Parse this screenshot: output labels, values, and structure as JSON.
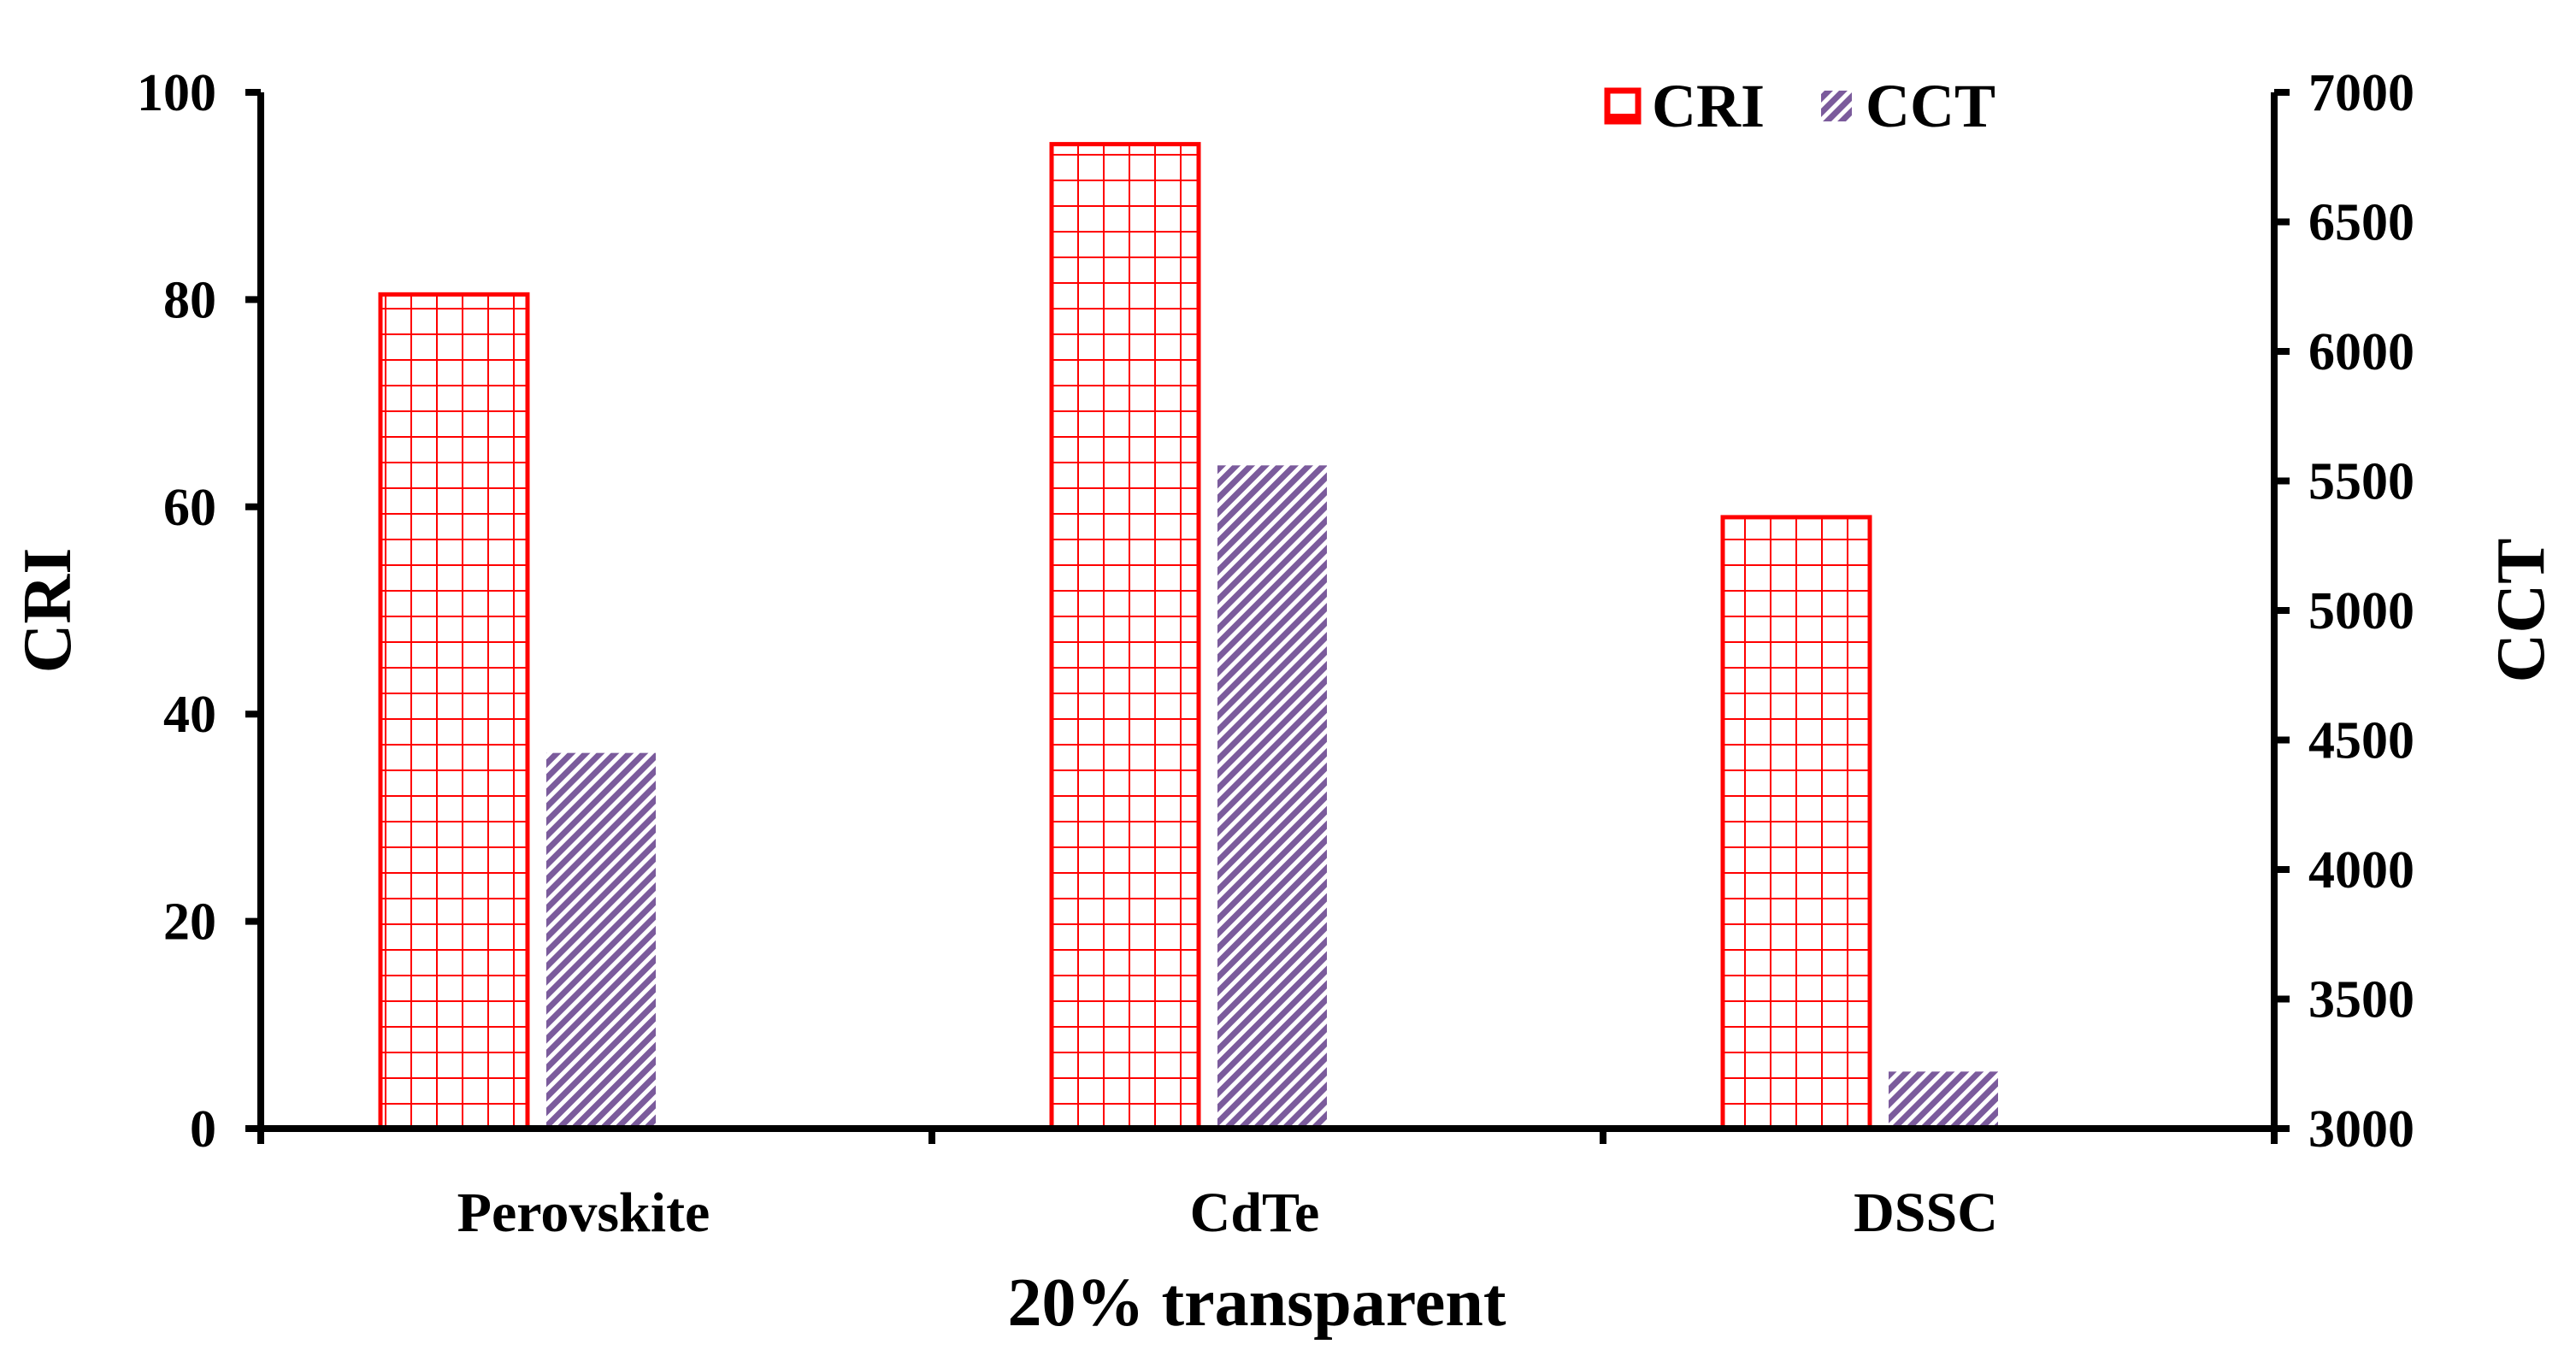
{
  "chart_data": {
    "type": "bar",
    "xlabel": "20% transparent",
    "categories": [
      "Perovskite",
      "CdTe",
      "DSSC"
    ],
    "series": [
      {
        "name": "CRI",
        "axis": "left",
        "values": [
          80.5,
          95,
          59
        ],
        "color": "#ff0000",
        "pattern": "grid"
      },
      {
        "name": "CCT",
        "axis": "right",
        "values": [
          4450,
          5560,
          3220
        ],
        "color": "#7b5b9c",
        "pattern": "diagonal-hatch"
      }
    ],
    "ylabel": "CRI",
    "ylim": [
      0,
      100
    ],
    "yticks": [
      "0",
      "20",
      "40",
      "60",
      "80",
      "100"
    ],
    "y2label": "CCT",
    "y2lim": [
      3000,
      7000
    ],
    "y2ticks": [
      "3000",
      "3500",
      "4000",
      "4500",
      "5000",
      "5500",
      "6000",
      "6500",
      "7000"
    ],
    "legend": {
      "position": "top-right",
      "entries": [
        "CRI",
        "CCT"
      ]
    },
    "grid": false
  }
}
